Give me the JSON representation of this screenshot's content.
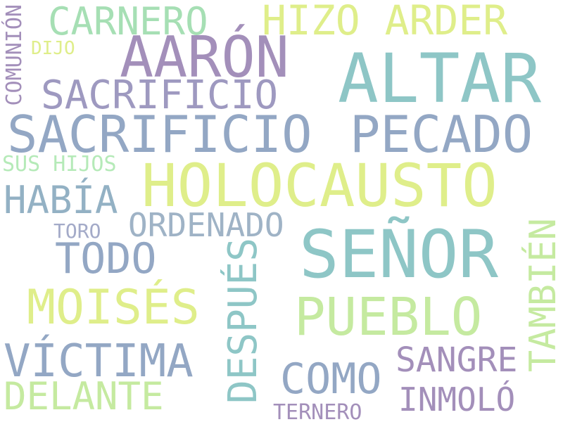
{
  "words": {
    "holocausto": {
      "text": "HOLOCAUSTO",
      "color": "#dfee8a"
    },
    "altar": {
      "text": "ALTAR",
      "color": "#8ec6c6"
    },
    "senor": {
      "text": "SEÑOR",
      "color": "#8ec6c6"
    },
    "aaron": {
      "text": "AARÓN",
      "color": "#a38fba"
    },
    "sacrificio_big": {
      "text": "SACRIFICIO",
      "color": "#93a7c4"
    },
    "pecado": {
      "text": "PECADO",
      "color": "#93a7c4"
    },
    "pueblo": {
      "text": "PUEBLO",
      "color": "#c5eaa0"
    },
    "hizo_arder": {
      "text": "HIZO ARDER",
      "color": "#dfee8a"
    },
    "carnero": {
      "text": "CARNERO",
      "color": "#a6dfb4"
    },
    "sacrificio_small": {
      "text": "SACRIFICIO",
      "color": "#9e99c0"
    },
    "moises": {
      "text": "MOISÉS",
      "color": "#dfee8a"
    },
    "victima": {
      "text": "VÍCTIMA",
      "color": "#93a7c4"
    },
    "todo": {
      "text": "TODO",
      "color": "#93a7c4"
    },
    "habia": {
      "text": "HABÍA",
      "color": "#93b1c4"
    },
    "ordenado": {
      "text": "ORDENADO",
      "color": "#9fb3c6"
    },
    "despues": {
      "text": "DESPUÉS",
      "color": "#8ec6c6"
    },
    "tambien": {
      "text": "TAMBIÉN",
      "color": "#c5eaa0"
    },
    "como": {
      "text": "COMO",
      "color": "#93a7c4"
    },
    "sangre": {
      "text": "SANGRE",
      "color": "#a38fba"
    },
    "delante": {
      "text": "DELANTE",
      "color": "#c5eaa0"
    },
    "inmolo": {
      "text": "INMOLÓ",
      "color": "#a38fba"
    },
    "ternero": {
      "text": "TERNERO",
      "color": "#a38fba"
    },
    "toro": {
      "text": "TORO",
      "color": "#a3aac8"
    },
    "sus_hijos": {
      "text": "SUS HIJOS",
      "color": "#b5eab8"
    },
    "dijo": {
      "text": "DIJO",
      "color": "#dfee8a"
    },
    "comunion": {
      "text": "COMUNIÓN",
      "color": "#a38fba"
    }
  }
}
